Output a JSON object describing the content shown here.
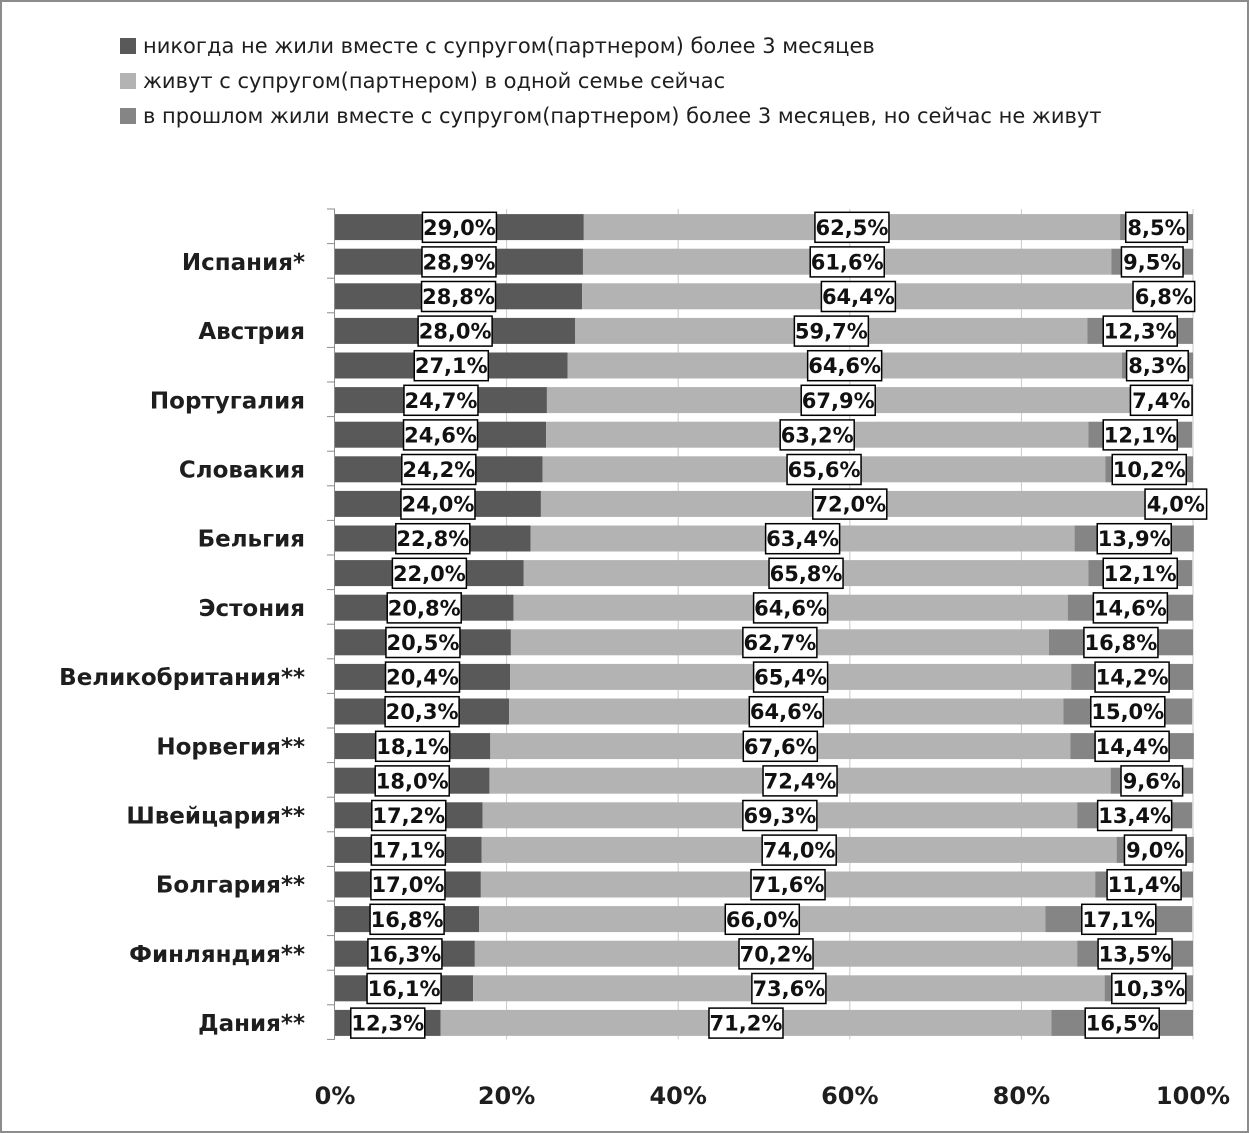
{
  "chart_data": {
    "type": "bar",
    "orientation": "horizontal",
    "stacked": "percent",
    "title": "",
    "xlabel": "",
    "ylabel": "",
    "xlim": [
      0,
      100
    ],
    "x_ticks": [
      "0%",
      "20%",
      "40%",
      "60%",
      "80%",
      "100%"
    ],
    "grid": true,
    "legend_position": "top",
    "categories": [
      "",
      "Испания*",
      "",
      "Австрия",
      "",
      "Португалия",
      "",
      "Словакия",
      "",
      "Бельгия",
      "",
      "Эстония",
      "",
      "Великобритания**",
      "",
      "Норвегия**",
      "",
      "Швейцария**",
      "",
      "Болгария**",
      "",
      "Финляндия**",
      "",
      "Дания**"
    ],
    "series": [
      {
        "name": "никогда не жили вместе с супругом(партнером) более 3 месяцев",
        "color": "#595959",
        "values": [
          29.0,
          28.9,
          28.8,
          28.0,
          27.1,
          24.7,
          24.6,
          24.2,
          24.0,
          22.8,
          22.0,
          20.8,
          20.5,
          20.4,
          20.3,
          18.1,
          18.0,
          17.2,
          17.1,
          17.0,
          16.8,
          16.3,
          16.1,
          12.3
        ],
        "labels": [
          "29,0%",
          "28,9%",
          "28,8%",
          "28,0%",
          "27,1%",
          "24,7%",
          "24,6%",
          "24,2%",
          "24,0%",
          "22,8%",
          "22,0%",
          "20,8%",
          "20,5%",
          "20,4%",
          "20,3%",
          "18,1%",
          "18,0%",
          "17,2%",
          "17,1%",
          "17,0%",
          "16,8%",
          "16,3%",
          "16,1%",
          "12,3%"
        ]
      },
      {
        "name": "живут с супругом(партнером) в одной семье сейчас",
        "color": "#b3b3b3",
        "values": [
          62.5,
          61.6,
          64.4,
          59.7,
          64.6,
          67.9,
          63.2,
          65.6,
          72.0,
          63.4,
          65.8,
          64.6,
          62.7,
          65.4,
          64.6,
          67.6,
          72.4,
          69.3,
          74.0,
          71.6,
          66.0,
          70.2,
          73.6,
          71.2
        ],
        "labels": [
          "62,5%",
          "61,6%",
          "64,4%",
          "59,7%",
          "64,6%",
          "67,9%",
          "63,2%",
          "65,6%",
          "72,0%",
          "63,4%",
          "65,8%",
          "64,6%",
          "62,7%",
          "65,4%",
          "64,6%",
          "67,6%",
          "72,4%",
          "69,3%",
          "74,0%",
          "71,6%",
          "66,0%",
          "70,2%",
          "73,6%",
          "71,2%"
        ]
      },
      {
        "name": "в прошлом жили вместе с супругом(партнером) более 3 месяцев, но сейчас не живут",
        "color": "#858585",
        "values": [
          8.5,
          9.5,
          6.8,
          12.3,
          8.3,
          7.4,
          12.1,
          10.2,
          4.0,
          13.9,
          12.1,
          14.6,
          16.8,
          14.2,
          15.0,
          14.4,
          9.6,
          13.4,
          9.0,
          11.4,
          17.1,
          13.5,
          10.3,
          16.5
        ],
        "labels": [
          "8,5%",
          "9,5%",
          "6,8%",
          "12,3%",
          "8,3%",
          "7,4%",
          "12,1%",
          "10,2%",
          "4,0%",
          "13,9%",
          "12,1%",
          "14,6%",
          "16,8%",
          "14,2%",
          "15,0%",
          "14,4%",
          "9,6%",
          "13,4%",
          "9,0%",
          "11,4%",
          "17,1%",
          "13,5%",
          "10,3%",
          "16,5%"
        ]
      }
    ]
  }
}
